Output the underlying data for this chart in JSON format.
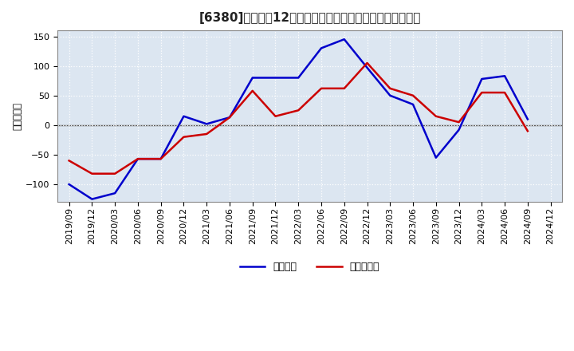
{
  "title": "[6380]　利益だ12か月移動合計の対前年同期増減額の推移",
  "ylabel": "（百万円）",
  "ylim": [
    -130,
    160
  ],
  "yticks": [
    -100,
    -50,
    0,
    50,
    100,
    150
  ],
  "background_color": "#ffffff",
  "plot_bg_color": "#dce6f1",
  "grid_color": "#ffffff",
  "zero_line_color": "#555555",
  "x_labels": [
    "2019/09",
    "2019/12",
    "2020/03",
    "2020/06",
    "2020/09",
    "2020/12",
    "2021/03",
    "2021/06",
    "2021/09",
    "2021/12",
    "2022/03",
    "2022/06",
    "2022/09",
    "2022/12",
    "2023/03",
    "2023/06",
    "2023/09",
    "2023/12",
    "2024/03",
    "2024/06",
    "2024/09",
    "2024/12"
  ],
  "series_operating": [
    -100,
    -125,
    -115,
    -57,
    -57,
    15,
    2,
    13,
    80,
    80,
    80,
    130,
    145,
    97,
    50,
    35,
    -55,
    -8,
    78,
    83,
    10,
    null
  ],
  "series_net": [
    -60,
    -82,
    -82,
    -57,
    -57,
    -20,
    -15,
    13,
    58,
    15,
    25,
    62,
    62,
    105,
    62,
    50,
    15,
    5,
    55,
    55,
    -10,
    null
  ],
  "line_color_operating": "#0000cc",
  "line_color_net": "#cc0000",
  "legend_label_op": "経常利益",
  "legend_label_net": "当期純利益",
  "title_fontsize": 11,
  "axis_label_fontsize": 8.5,
  "tick_fontsize": 8,
  "legend_fontsize": 9
}
